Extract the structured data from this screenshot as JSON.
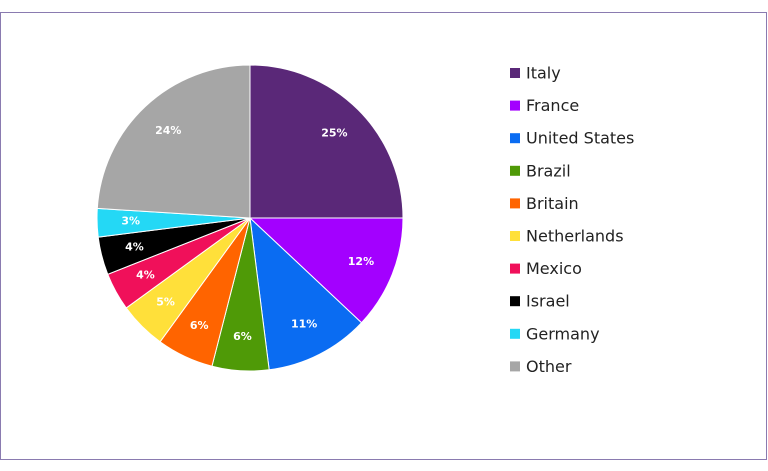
{
  "chart_data": {
    "type": "pie",
    "categories": [
      "Italy",
      "France",
      "United States",
      "Brazil",
      "Britain",
      "Netherlands",
      "Mexico",
      "Israel",
      "Germany",
      "Other"
    ],
    "values": [
      25,
      12,
      11,
      6,
      6,
      5,
      4,
      4,
      3,
      24
    ],
    "value_labels": [
      "25%",
      "12%",
      "11%",
      "6%",
      "6%",
      "5%",
      "4%",
      "4%",
      "3%",
      "24%"
    ],
    "colors": [
      "#5a2878",
      "#a300ff",
      "#0a6cf2",
      "#4f9a07",
      "#ff6400",
      "#ffe03a",
      "#f0105a",
      "#000000",
      "#24d8f5",
      "#a6a6a6"
    ],
    "legend": "right"
  }
}
